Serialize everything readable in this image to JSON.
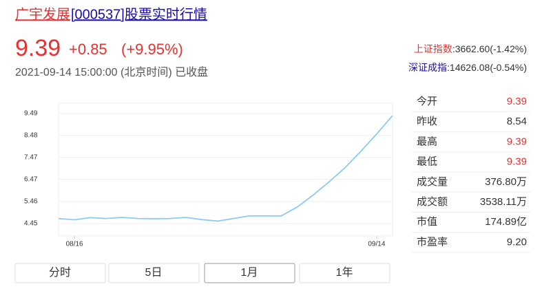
{
  "header": {
    "name": "广宇发展",
    "code_title": "[000537]股票实时行情"
  },
  "quote": {
    "price": "9.39",
    "change": "+0.85",
    "change_pct": "(+9.95%)",
    "time": "2021-09-14 15:00:00 (北京时间) 已收盘",
    "indices": [
      {
        "name": "上证指数",
        "value": ":3662.60(-1.42%)"
      },
      {
        "name": "深证成指",
        "value": ":14626.08(-0.54%)"
      }
    ],
    "stats": [
      {
        "label": "今开",
        "value": "9.39",
        "up": true
      },
      {
        "label": "昨收",
        "value": "8.54",
        "up": false
      },
      {
        "label": "最高",
        "value": "9.39",
        "up": true
      },
      {
        "label": "最低",
        "value": "9.39",
        "up": true
      },
      {
        "label": "成交量",
        "value": "376.80万",
        "up": false
      },
      {
        "label": "成交额",
        "value": "3538.11万",
        "up": false
      },
      {
        "label": "市值",
        "value": "174.89亿",
        "up": false
      },
      {
        "label": "市盈率",
        "value": "9.20",
        "up": false
      }
    ]
  },
  "chart_data": {
    "type": "line",
    "color": "#8ec9f5",
    "grid": true,
    "categories": [
      null,
      "08/16",
      null,
      null,
      null,
      null,
      null,
      null,
      null,
      null,
      null,
      null,
      null,
      null,
      null,
      null,
      null,
      null,
      null,
      null,
      "09/14",
      null
    ],
    "values": [
      4.68,
      4.62,
      4.72,
      4.68,
      4.73,
      4.68,
      4.67,
      4.68,
      4.73,
      4.63,
      4.56,
      4.68,
      4.8,
      4.8,
      4.8,
      5.2,
      5.75,
      6.35,
      7.0,
      7.75,
      8.55,
      9.39
    ],
    "ylim": [
      3.88,
      9.96
    ],
    "yticks": [
      4.45,
      5.46,
      6.47,
      7.47,
      8.48,
      9.49
    ]
  },
  "tabs": [
    "分时",
    "5日",
    "1月",
    "1年"
  ],
  "selected_tab": 2
}
